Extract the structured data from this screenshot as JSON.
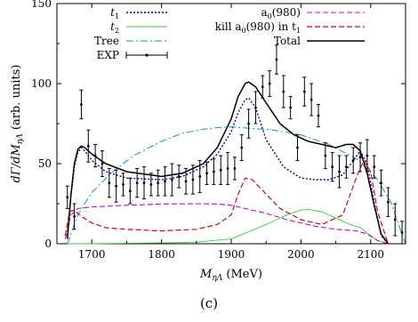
{
  "caption": "(c)",
  "chart_data": {
    "type": "line",
    "xlabel": "M_{ηΛ} (MeV)",
    "ylabel": "dΓ/dM_{ηΛ} (arb. units)",
    "xlim": [
      1650,
      2150
    ],
    "ylim": [
      0,
      150
    ],
    "x_ticks": [
      1700,
      1800,
      1900,
      2000,
      2100
    ],
    "y_ticks": [
      0,
      50,
      100,
      150
    ],
    "legend_position": "top",
    "series": [
      {
        "name": "t1",
        "label_main": "t",
        "label_sub": "1",
        "color": "#0000cc",
        "dash": "2,2",
        "width": 1.4,
        "x": [
          1665,
          1670,
          1675,
          1680,
          1685,
          1690,
          1700,
          1720,
          1750,
          1800,
          1830,
          1860,
          1880,
          1900,
          1910,
          1920,
          1925,
          1935,
          1950,
          1975,
          2000,
          2020,
          2040,
          2060,
          2075,
          2085,
          2095,
          2105,
          2115,
          2125
        ],
        "y": [
          3,
          30,
          48,
          57,
          60,
          58,
          52,
          45,
          41,
          40,
          42,
          48,
          56,
          70,
          82,
          90,
          91,
          85,
          65,
          48,
          41,
          40,
          40,
          43,
          52,
          58,
          50,
          26,
          5,
          0
        ]
      },
      {
        "name": "t2",
        "label_main": "t",
        "label_sub": "2",
        "color": "#33cc33",
        "dash": "",
        "width": 0.9,
        "x": [
          1665,
          1700,
          1800,
          1850,
          1900,
          1950,
          1980,
          2000,
          2010,
          2030,
          2050,
          2070,
          2085,
          2100,
          2110,
          2125
        ],
        "y": [
          0,
          0,
          0.5,
          1,
          3,
          12,
          18,
          21,
          21.5,
          20,
          16,
          12,
          10,
          5,
          2,
          0
        ]
      },
      {
        "name": "Tree",
        "label_main": "Tree",
        "label_sub": "",
        "color": "#0099cc",
        "dash": "8,3,2,3",
        "width": 1.0,
        "x": [
          1665,
          1680,
          1700,
          1730,
          1760,
          1800,
          1830,
          1860,
          1880,
          1900,
          1930,
          1960,
          2000,
          2040,
          2080,
          2110,
          2130,
          2140,
          2150
        ],
        "y": [
          0,
          18,
          32,
          45,
          55,
          64,
          69,
          71.5,
          72.5,
          73,
          72,
          71,
          68,
          62,
          53,
          40,
          25,
          12,
          0
        ]
      },
      {
        "name": "EXP",
        "label_main": "EXP",
        "label_sub": "",
        "color": "#000000",
        "dash": "",
        "width": 1.0,
        "x": [
          1665,
          1675,
          1685,
          1695,
          1705,
          1715,
          1725,
          1735,
          1745,
          1755,
          1765,
          1775,
          1785,
          1795,
          1805,
          1815,
          1825,
          1835,
          1845,
          1855,
          1865,
          1875,
          1885,
          1895,
          1905,
          1915,
          1925,
          1935,
          1945,
          1955,
          1965,
          1975,
          1985,
          1995,
          2005,
          2015,
          2025,
          2035,
          2045,
          2055,
          2065,
          2075,
          2085,
          2095,
          2105,
          2115,
          2125,
          2135,
          2145
        ],
        "y": [
          29,
          17,
          87,
          61,
          55,
          50,
          38,
          36,
          37,
          33,
          38,
          38,
          37,
          38,
          39,
          40,
          42,
          39,
          40,
          42,
          44,
          45,
          46,
          47,
          47,
          60,
          75,
          85,
          98,
          100,
          115,
          95,
          85,
          60,
          95,
          90,
          80,
          55,
          48,
          45,
          48,
          52,
          54,
          55,
          48,
          38,
          26,
          15,
          7
        ]
      },
      {
        "name": "a0(980)",
        "label_main": "a",
        "label_sub": "0",
        "label_rest": "(980)",
        "color": "#cc00cc",
        "dash": "6,3",
        "width": 1.1,
        "x": [
          1662,
          1670,
          1680,
          1700,
          1750,
          1800,
          1850,
          1880,
          1900,
          1920,
          1950,
          1980,
          2000,
          2020,
          2050,
          2080,
          2095,
          2110,
          2125
        ],
        "y": [
          3,
          18,
          22,
          23,
          24,
          24.8,
          25,
          24.8,
          24,
          22,
          19,
          15,
          13,
          11,
          9,
          8,
          6,
          2,
          0
        ]
      },
      {
        "name": "kill a0(980) in t1",
        "label_main": "kill a",
        "label_sub": "0",
        "label_rest": "(980) in t",
        "label_sub2": "1",
        "color": "#dd0000",
        "dash": "6,3",
        "width": 1.2,
        "x": [
          1662,
          1668,
          1675,
          1685,
          1700,
          1720,
          1750,
          1800,
          1850,
          1880,
          1900,
          1910,
          1920,
          1930,
          1950,
          1970,
          2000,
          2030,
          2060,
          2080,
          2090,
          2100,
          2110,
          2125
        ],
        "y": [
          5,
          20,
          21,
          17,
          13,
          10,
          9,
          8,
          9,
          12,
          18,
          31,
          41,
          40,
          31,
          22,
          15,
          12,
          18,
          42,
          52,
          45,
          20,
          0
        ]
      },
      {
        "name": "Total",
        "label_main": "Total",
        "label_sub": "",
        "color": "#000000",
        "dash": "",
        "width": 1.5,
        "x": [
          1665,
          1670,
          1675,
          1680,
          1685,
          1690,
          1700,
          1720,
          1750,
          1800,
          1830,
          1860,
          1880,
          1900,
          1910,
          1920,
          1925,
          1935,
          1950,
          1970,
          1990,
          2010,
          2030,
          2050,
          2065,
          2075,
          2085,
          2095,
          2105,
          2115,
          2125
        ],
        "y": [
          3,
          30,
          50,
          59,
          61,
          60,
          56,
          50,
          45,
          42,
          44,
          50,
          60,
          78,
          92,
          100,
          101,
          98,
          88,
          75,
          68,
          64,
          62,
          60,
          62,
          62,
          58,
          44,
          24,
          6,
          0
        ]
      }
    ]
  }
}
